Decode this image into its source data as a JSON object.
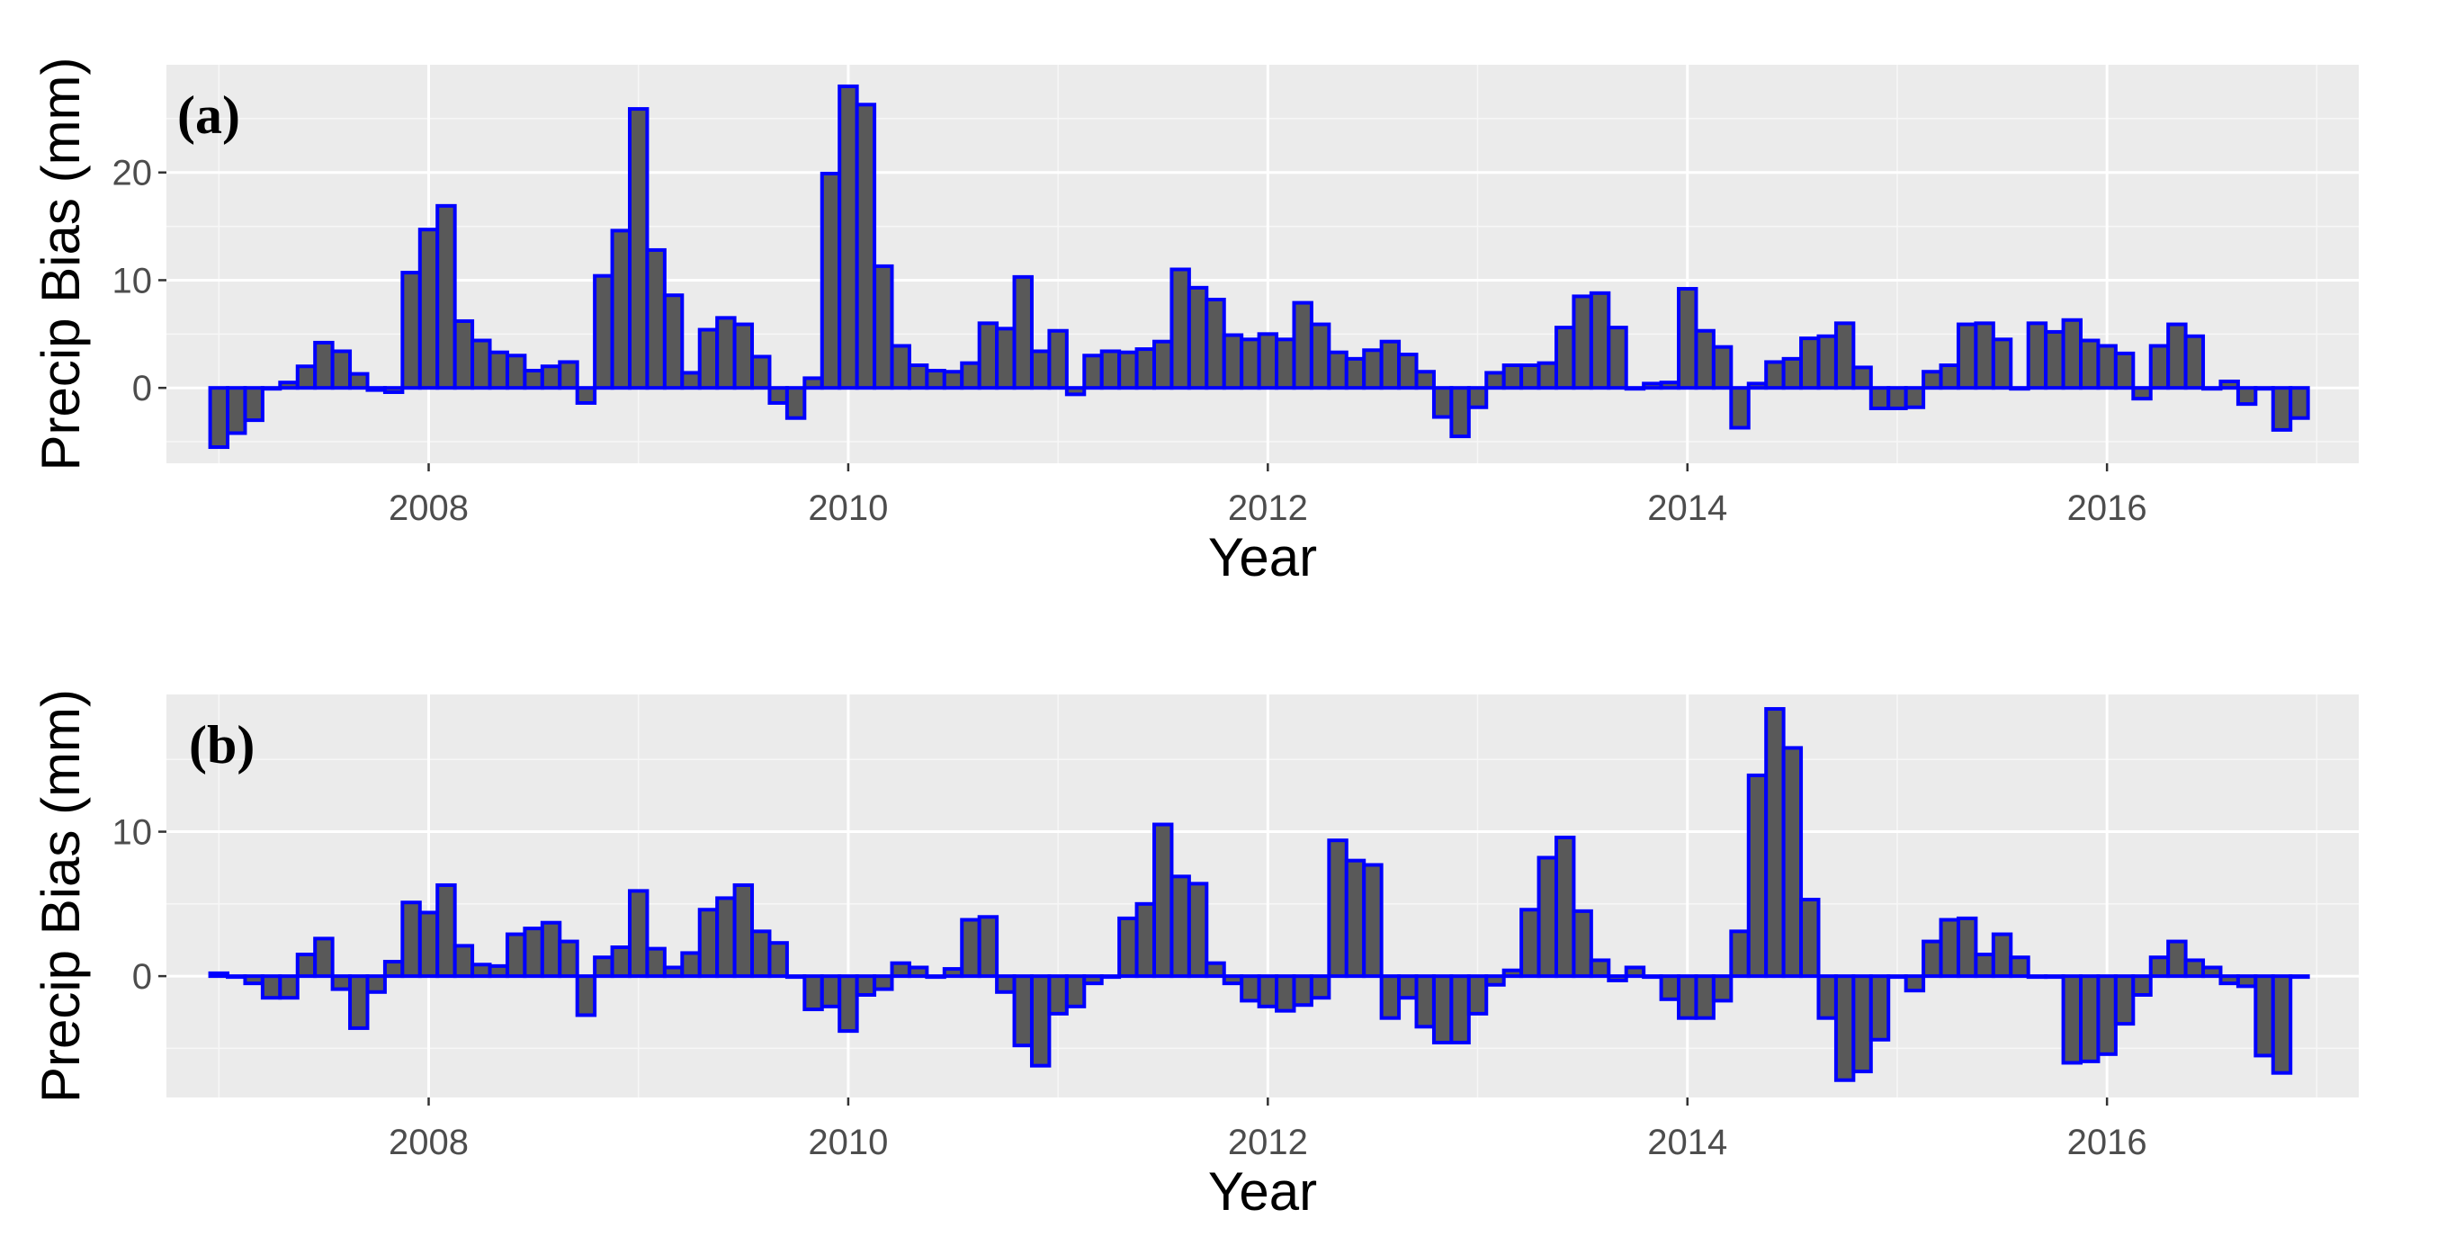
{
  "chart_data": [
    {
      "type": "bar",
      "panel_label": "(a)",
      "xlabel": "Year",
      "ylabel": "Precip Bias (mm)",
      "xticks": [
        "2008",
        "2010",
        "2012",
        "2014",
        "2016"
      ],
      "yticks": [
        "0",
        "10",
        "20"
      ],
      "xlim": [
        2006.75,
        2017.2
      ],
      "ylim": [
        -7,
        30
      ],
      "bar_fill": "#595959",
      "bar_outline": "#0000ff",
      "panel_background": "#ebebeb",
      "grid": true,
      "x_start": "2007-01",
      "x_step": "monthly",
      "values": [
        -5.5,
        -4.2,
        -3.0,
        0,
        0.5,
        2.0,
        4.2,
        3.4,
        1.3,
        -0.2,
        -0.4,
        10.7,
        14.7,
        16.9,
        6.2,
        4.4,
        3.3,
        3.0,
        1.6,
        2.0,
        2.4,
        -1.4,
        10.4,
        14.6,
        25.9,
        12.8,
        8.6,
        1.4,
        5.4,
        6.5,
        5.9,
        2.9,
        -1.4,
        -2.8,
        0.9,
        19.9,
        28.0,
        26.3,
        11.3,
        3.9,
        2.1,
        1.6,
        1.5,
        2.3,
        6.0,
        5.5,
        10.3,
        3.4,
        5.3,
        -0.6,
        3.0,
        3.4,
        3.3,
        3.6,
        4.3,
        11.0,
        9.3,
        8.2,
        4.9,
        4.5,
        5.0,
        4.5,
        7.9,
        5.9,
        3.3,
        2.7,
        3.5,
        4.3,
        3.1,
        1.5,
        -2.7,
        -4.5,
        -1.8,
        1.4,
        2.1,
        2.1,
        2.3,
        5.6,
        8.5,
        8.8,
        5.6,
        0,
        0.4,
        0.5,
        9.2,
        5.3,
        3.8,
        -3.7,
        0.4,
        2.4,
        2.7,
        4.6,
        4.8,
        6.0,
        1.9,
        -1.9,
        -1.9,
        -1.8,
        1.5,
        2.1,
        5.9,
        6.0,
        4.5,
        0,
        6.0,
        5.2,
        6.3,
        4.4,
        3.9,
        3.2,
        -1.0,
        3.9,
        5.9,
        4.8,
        0,
        0.6,
        -1.5,
        0,
        -3.9,
        -2.8
      ]
    },
    {
      "type": "bar",
      "panel_label": "(b)",
      "xlabel": "Year",
      "ylabel": "Precip Bias (mm)",
      "xticks": [
        "2008",
        "2010",
        "2012",
        "2014",
        "2016"
      ],
      "yticks": [
        "0",
        "10"
      ],
      "xlim": [
        2006.75,
        2017.2
      ],
      "ylim": [
        -8.4,
        19.5
      ],
      "bar_fill": "#595959",
      "bar_outline": "#0000ff",
      "panel_background": "#ebebeb",
      "grid": true,
      "x_start": "2007-01",
      "x_step": "monthly",
      "values": [
        0.2,
        0,
        -0.5,
        -1.5,
        -1.5,
        1.5,
        2.6,
        -0.9,
        -3.6,
        -1.1,
        1.0,
        5.1,
        4.4,
        6.3,
        2.1,
        0.8,
        0.7,
        2.9,
        3.3,
        3.7,
        2.4,
        -2.7,
        1.3,
        2.0,
        5.9,
        1.9,
        0.6,
        1.6,
        4.6,
        5.4,
        6.3,
        3.1,
        2.3,
        0,
        -2.3,
        -2.1,
        -3.8,
        -1.3,
        -0.9,
        0.9,
        0.6,
        0,
        0.5,
        3.9,
        4.1,
        -1.1,
        -4.8,
        -6.2,
        -2.6,
        -2.1,
        -0.5,
        0,
        4.0,
        5.0,
        10.5,
        6.9,
        6.4,
        0.9,
        -0.5,
        -1.7,
        -2.1,
        -2.4,
        -2.0,
        -1.5,
        9.4,
        8.0,
        7.7,
        -2.9,
        -1.5,
        -3.5,
        -4.6,
        -4.6,
        -2.6,
        -0.6,
        0.4,
        4.6,
        8.2,
        9.6,
        4.5,
        1.1,
        -0.3,
        0.6,
        0,
        -1.6,
        -2.9,
        -2.9,
        -1.7,
        3.1,
        13.9,
        18.5,
        15.8,
        5.3,
        -2.9,
        -7.2,
        -6.6,
        -4.4,
        0,
        -1.0,
        2.4,
        3.9,
        4.0,
        1.5,
        2.9,
        1.3,
        0,
        0,
        -6.0,
        -5.9,
        -5.4,
        -3.3,
        -1.3,
        1.3,
        2.4,
        1.1,
        0.6,
        -0.5,
        -0.7,
        -5.5,
        -6.7,
        0
      ]
    }
  ]
}
